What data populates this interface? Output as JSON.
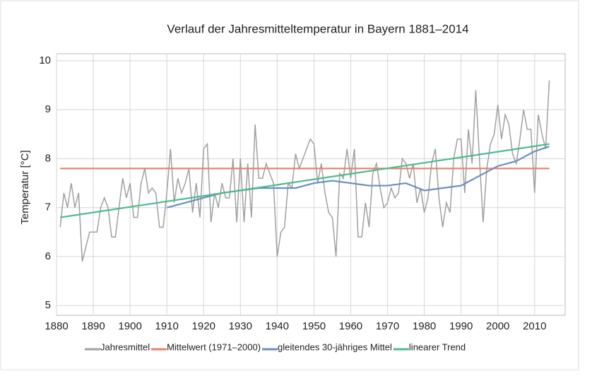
{
  "chart_data": {
    "type": "line",
    "title": "Verlauf der Jahresmitteltemperatur in Bayern 1881–2014",
    "y_label": "Temperatur [°C]",
    "xlim": [
      1880,
      2016
    ],
    "xticks": [
      1880,
      1890,
      1900,
      1910,
      1920,
      1930,
      1940,
      1950,
      1960,
      1970,
      1980,
      1990,
      2000,
      2010
    ],
    "ylim": [
      4.8,
      10
    ],
    "yticks": [
      5,
      6,
      7,
      8,
      9,
      10
    ],
    "grid": true,
    "legend": "bottom",
    "series": [
      {
        "name": "Jahresmittel",
        "color": "#a0a0a0",
        "x": [
          1881,
          1882,
          1883,
          1884,
          1885,
          1886,
          1887,
          1888,
          1889,
          1890,
          1891,
          1892,
          1893,
          1894,
          1895,
          1896,
          1897,
          1898,
          1899,
          1900,
          1901,
          1902,
          1903,
          1904,
          1905,
          1906,
          1907,
          1908,
          1909,
          1910,
          1911,
          1912,
          1913,
          1914,
          1915,
          1916,
          1917,
          1918,
          1919,
          1920,
          1921,
          1922,
          1923,
          1924,
          1925,
          1926,
          1927,
          1928,
          1929,
          1930,
          1931,
          1932,
          1933,
          1934,
          1935,
          1936,
          1937,
          1938,
          1939,
          1940,
          1941,
          1942,
          1943,
          1944,
          1945,
          1946,
          1947,
          1948,
          1949,
          1950,
          1951,
          1952,
          1953,
          1954,
          1955,
          1956,
          1957,
          1958,
          1959,
          1960,
          1961,
          1962,
          1963,
          1964,
          1965,
          1966,
          1967,
          1968,
          1969,
          1970,
          1971,
          1972,
          1973,
          1974,
          1975,
          1976,
          1977,
          1978,
          1979,
          1980,
          1981,
          1982,
          1983,
          1984,
          1985,
          1986,
          1987,
          1988,
          1989,
          1990,
          1991,
          1992,
          1993,
          1994,
          1995,
          1996,
          1997,
          1998,
          1999,
          2000,
          2001,
          2002,
          2003,
          2004,
          2005,
          2006,
          2007,
          2008,
          2009,
          2010,
          2011,
          2012,
          2013,
          2014
        ],
        "values": [
          6.6,
          7.3,
          7.0,
          7.5,
          7.0,
          7.3,
          5.9,
          6.2,
          6.5,
          6.5,
          6.5,
          7.0,
          7.2,
          7.0,
          6.4,
          6.4,
          7.0,
          7.6,
          7.2,
          7.5,
          6.8,
          6.8,
          7.5,
          7.8,
          7.3,
          7.4,
          7.3,
          6.6,
          6.6,
          7.3,
          8.2,
          7.1,
          7.6,
          7.3,
          7.5,
          7.8,
          6.9,
          7.5,
          6.8,
          8.2,
          8.3,
          6.7,
          7.3,
          7.0,
          7.5,
          7.2,
          7.2,
          8.0,
          6.7,
          8.0,
          6.7,
          7.9,
          6.8,
          8.7,
          7.6,
          7.6,
          7.9,
          7.7,
          7.5,
          6.0,
          6.5,
          6.6,
          7.5,
          7.4,
          8.1,
          7.8,
          8.0,
          8.2,
          8.4,
          8.3,
          7.5,
          7.9,
          7.3,
          6.9,
          6.8,
          6.0,
          7.7,
          7.6,
          8.2,
          7.6,
          8.2,
          6.4,
          6.4,
          7.1,
          6.6,
          7.7,
          7.9,
          7.4,
          7.0,
          7.1,
          7.4,
          7.2,
          7.3,
          8.0,
          7.9,
          7.6,
          7.9,
          7.1,
          7.4,
          6.9,
          7.2,
          7.9,
          8.2,
          7.2,
          6.6,
          7.1,
          6.9,
          8.0,
          8.4,
          8.4,
          7.3,
          8.6,
          7.9,
          9.4,
          8.0,
          6.7,
          7.8,
          8.3,
          8.5,
          9.1,
          8.4,
          8.9,
          8.7,
          8.1,
          7.9,
          8.4,
          9.0,
          8.6,
          8.6,
          7.3,
          8.9,
          8.5,
          8.2,
          9.6
        ]
      },
      {
        "name": "Mittelwert (1971–2000)",
        "color": "#e8806e",
        "x": [
          1881,
          2014
        ],
        "values": [
          7.8,
          7.8
        ]
      },
      {
        "name": "gleitendes 30-jähriges Mittel",
        "color": "#6b8fc0",
        "x": [
          1910,
          1915,
          1920,
          1925,
          1930,
          1935,
          1940,
          1945,
          1950,
          1955,
          1960,
          1965,
          1970,
          1975,
          1980,
          1985,
          1990,
          1995,
          2000,
          2005,
          2010,
          2014
        ],
        "values": [
          7.0,
          7.1,
          7.2,
          7.3,
          7.35,
          7.4,
          7.4,
          7.4,
          7.5,
          7.55,
          7.5,
          7.45,
          7.45,
          7.5,
          7.35,
          7.4,
          7.45,
          7.65,
          7.85,
          7.95,
          8.15,
          8.25
        ]
      },
      {
        "name": "linearer Trend",
        "color": "#4dbb8c",
        "x": [
          1881,
          2014
        ],
        "values": [
          6.8,
          8.3
        ]
      }
    ]
  }
}
